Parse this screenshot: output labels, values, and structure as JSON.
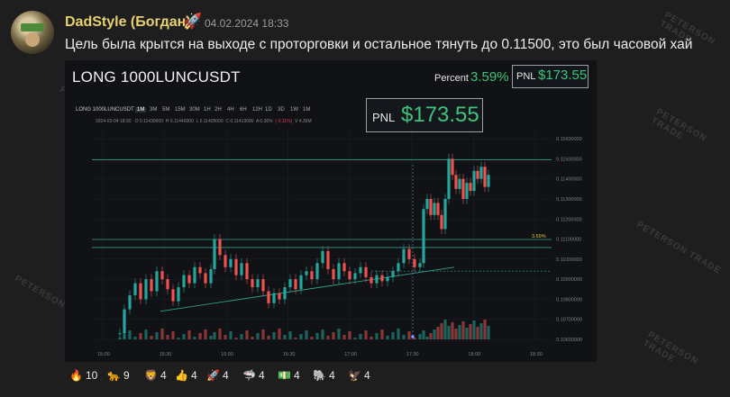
{
  "post": {
    "author": "DadStyle (Богдан)",
    "author_emoji": "🚀",
    "timestamp": "04.02.2024 18:33",
    "text": "Цель была крытся на выходе с проторговки и остальное тянуть до 0.11500, это был часовой хай"
  },
  "chart": {
    "title": "LONG 1000LUNCUSDT",
    "percent_label": "Percent",
    "percent_value": "3.59%",
    "pnl_label": "PNL",
    "pnl_value": "$173.55",
    "symbol": "LONG 1000LUNCUSDT",
    "timeframes": [
      "1M",
      "3M",
      "5M",
      "15M",
      "30M",
      "1H",
      "2H",
      "4H",
      "6H",
      "12H",
      "1D",
      "3D",
      "1W",
      "1M"
    ],
    "active_timeframe": "1M",
    "ohlc_text": {
      "time": "2024-02-04 18:30",
      "open": "O 0.11430000",
      "high": "H 0.11446000",
      "low": "L 0.11405000",
      "close": "C 0.11419000",
      "amp": "A 0.36%",
      "change": "(-0.11%)",
      "volume": "V 4.36M"
    },
    "level_label": "3.59%"
  },
  "chart_data": {
    "type": "candlestick",
    "x_ticks": [
      "15:00",
      "15:30",
      "16:00",
      "16:30",
      "17:00",
      "17:30",
      "18:00",
      "18:30"
    ],
    "y_ticks": [
      "0.11600000",
      "0.11500000",
      "0.11400000",
      "0.11300000",
      "0.11200000",
      "0.11100000",
      "0.11000000",
      "0.10900000",
      "0.10800000",
      "0.10700000",
      "0.10600000"
    ],
    "ylim": [
      0.106,
      0.1165
    ],
    "horizontal_levels": [
      0.11495,
      0.11098,
      0.11058
    ],
    "stop_level": 0.1094,
    "up_color": "#26a69a",
    "down_color": "#ef5350"
  },
  "reactions": [
    {
      "emoji": "🔥",
      "count": "10"
    },
    {
      "emoji": "🐆",
      "count": "9"
    },
    {
      "emoji": "🦁",
      "count": "4"
    },
    {
      "emoji": "👍",
      "count": "4"
    },
    {
      "emoji": "🚀",
      "count": "4"
    },
    {
      "emoji": "🦈",
      "count": "4"
    },
    {
      "emoji": "💵",
      "count": "4"
    },
    {
      "emoji": "🐘",
      "count": "4"
    },
    {
      "emoji": "🦅",
      "count": "4"
    }
  ]
}
